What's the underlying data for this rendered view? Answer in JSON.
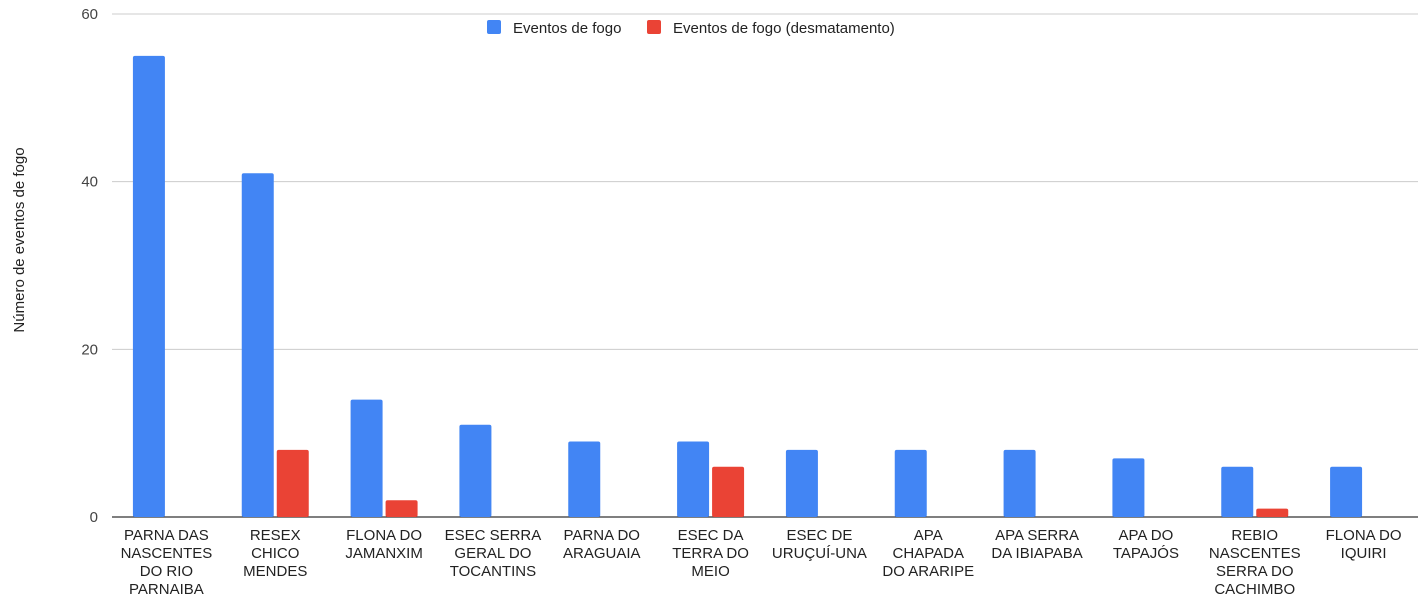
{
  "chart_data": {
    "type": "bar",
    "title": "",
    "xlabel": "",
    "ylabel": "Número de eventos de fogo",
    "ylim": [
      0,
      60
    ],
    "yticks": [
      0,
      20,
      40,
      60
    ],
    "grid": true,
    "legend_position": "top",
    "categories": [
      [
        "PARNA DAS",
        "NASCENTES",
        "DO RIO",
        "PARNAIBA"
      ],
      [
        "RESEX",
        "CHICO",
        "MENDES"
      ],
      [
        "FLONA DO",
        "JAMANXIM"
      ],
      [
        "ESEC SERRA",
        "GERAL DO",
        "TOCANTINS"
      ],
      [
        "PARNA DO",
        "ARAGUAIA"
      ],
      [
        "ESEC DA",
        "TERRA DO",
        "MEIO"
      ],
      [
        "ESEC DE",
        "URUÇUÍ-UNA"
      ],
      [
        "APA",
        "CHAPADA",
        "DO ARARIPE"
      ],
      [
        "APA SERRA",
        "DA IBIAPABA"
      ],
      [
        "APA DO",
        "TAPAJÓS"
      ],
      [
        "REBIO",
        "NASCENTES",
        "SERRA DO",
        "CACHIMBO"
      ],
      [
        "FLONA DO",
        "IQUIRI"
      ]
    ],
    "series": [
      {
        "name": "Eventos de fogo",
        "color": "#4285F4",
        "values": [
          55,
          41,
          14,
          11,
          9,
          9,
          8,
          8,
          8,
          7,
          6,
          6
        ]
      },
      {
        "name": "Eventos de fogo (desmatamento)",
        "color": "#EA4335",
        "values": [
          0,
          8,
          2,
          0,
          0,
          6,
          0,
          0,
          0,
          0,
          1,
          0
        ]
      }
    ]
  }
}
